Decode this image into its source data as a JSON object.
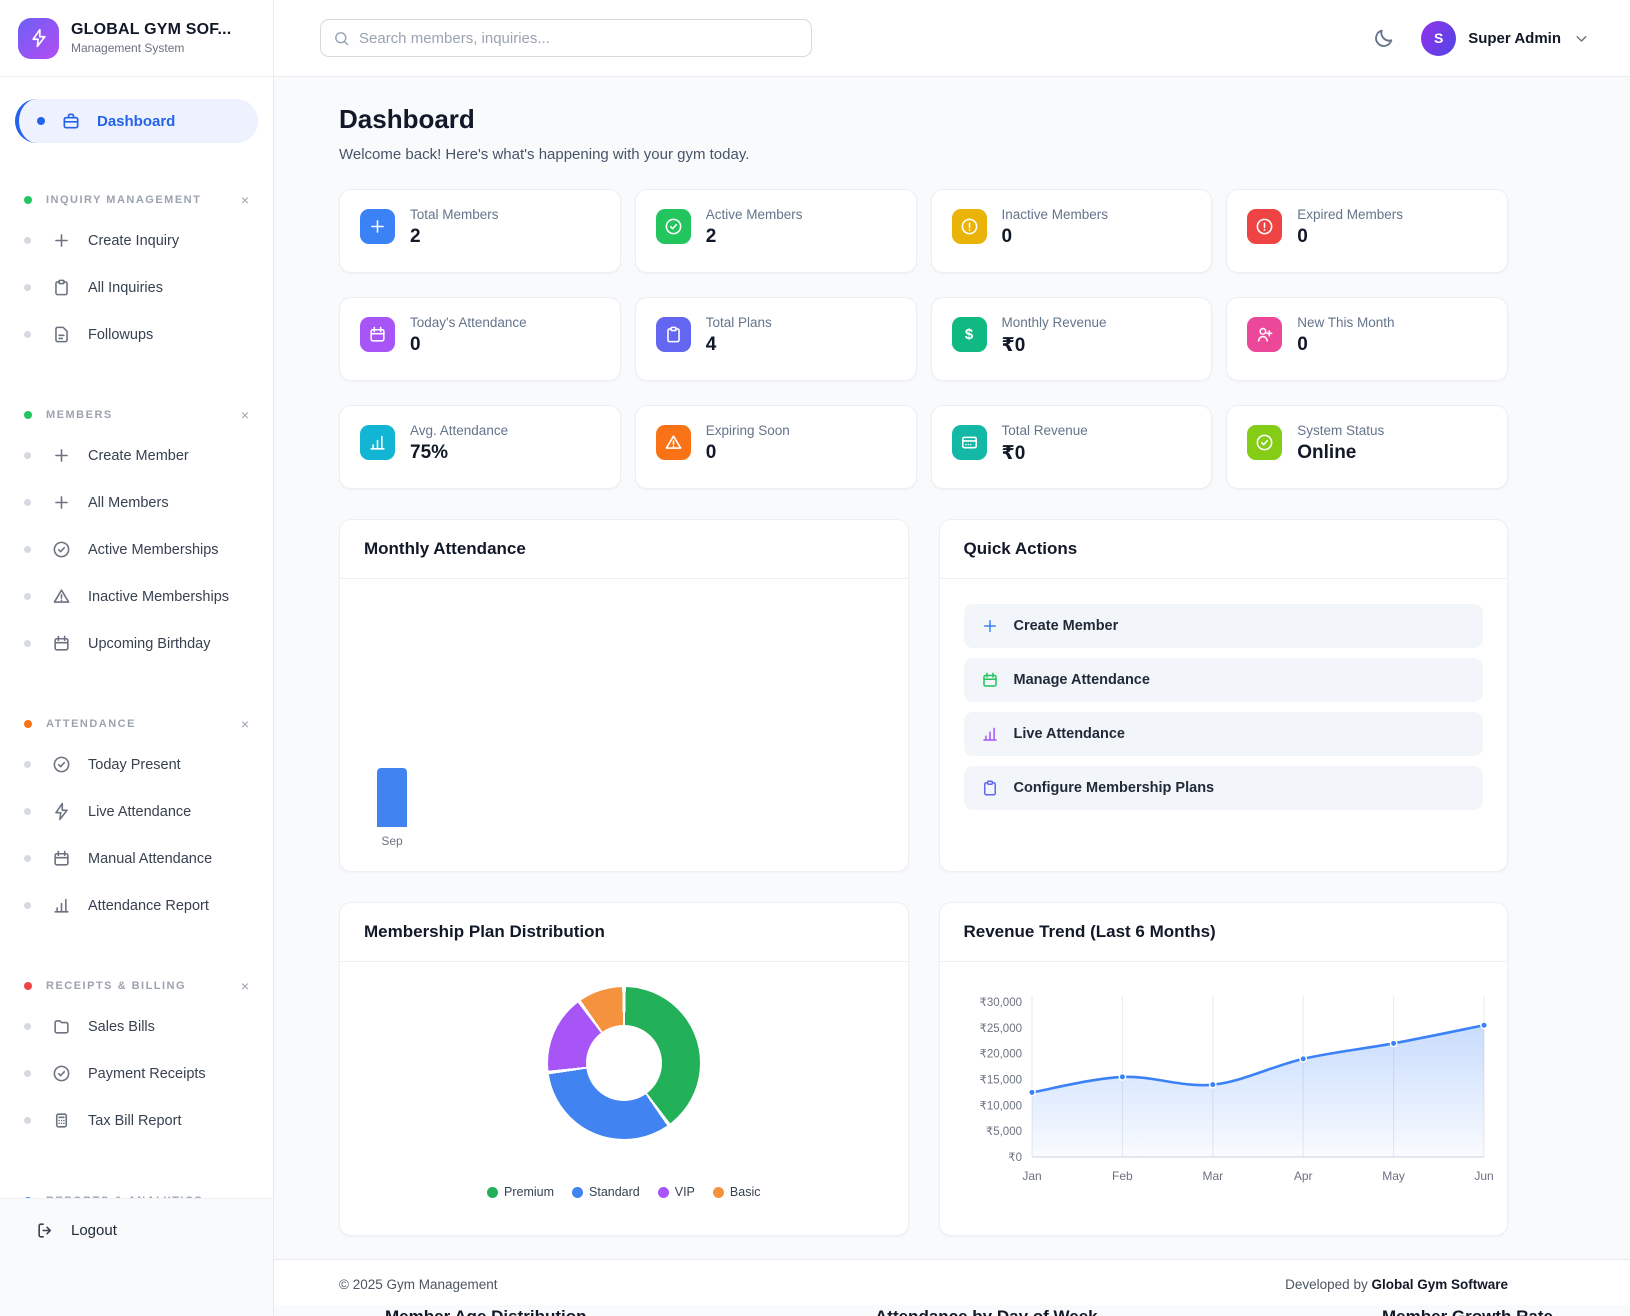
{
  "brand": {
    "title": "GLOBAL GYM SOF...",
    "subtitle": "Management System",
    "logo_icon": "lightning-icon",
    "accent_colors": [
      "#6d5ff6",
      "#b34df2"
    ]
  },
  "search": {
    "placeholder": "Search members, inquiries...",
    "icon": "search-icon"
  },
  "user": {
    "initial": "S",
    "name": "Super Admin"
  },
  "sidebar": {
    "dashboard": {
      "label": "Dashboard",
      "icon": "briefcase-icon",
      "active": true,
      "active_color": "#2563eb"
    },
    "sections": [
      {
        "label": "INQUIRY MANAGEMENT",
        "dot_color": "#22c55e",
        "close_icon": "close-icon",
        "items": [
          {
            "label": "Create Inquiry",
            "icon": "plus-icon"
          },
          {
            "label": "All Inquiries",
            "icon": "clipboard-icon"
          },
          {
            "label": "Followups",
            "icon": "file-icon"
          }
        ]
      },
      {
        "label": "MEMBERS",
        "dot_color": "#22c55e",
        "close_icon": "close-icon",
        "items": [
          {
            "label": "Create Member",
            "icon": "plus-icon"
          },
          {
            "label": "All Members",
            "icon": "plus-icon"
          },
          {
            "label": "Active Memberships",
            "icon": "check-circle-icon"
          },
          {
            "label": "Inactive Memberships",
            "icon": "alert-triangle-icon"
          },
          {
            "label": "Upcoming Birthday",
            "icon": "calendar-icon"
          }
        ]
      },
      {
        "label": "ATTENDANCE",
        "dot_color": "#f97316",
        "close_icon": "close-icon",
        "items": [
          {
            "label": "Today Present",
            "icon": "check-circle-icon"
          },
          {
            "label": "Live Attendance",
            "icon": "lightning-icon"
          },
          {
            "label": "Manual Attendance",
            "icon": "calendar-icon"
          },
          {
            "label": "Attendance Report",
            "icon": "bar-chart-icon"
          }
        ]
      },
      {
        "label": "RECEIPTS & BILLING",
        "dot_color": "#ef4444",
        "close_icon": "close-icon",
        "items": [
          {
            "label": "Sales Bills",
            "icon": "folder-icon"
          },
          {
            "label": "Payment Receipts",
            "icon": "check-circle-icon"
          },
          {
            "label": "Tax Bill Report",
            "icon": "calculator-icon"
          }
        ]
      },
      {
        "label": "REPORTS & ANALYTICS",
        "dot_color": "#3b82f6",
        "close_icon": "close-icon",
        "items": []
      }
    ],
    "logout_label": "Logout"
  },
  "page": {
    "title": "Dashboard",
    "subtitle": "Welcome back! Here's what's happening with your gym today."
  },
  "stats": [
    {
      "label": "Total Members",
      "value": "2",
      "color": "#3b82f6",
      "icon": "plus-icon"
    },
    {
      "label": "Active Members",
      "value": "2",
      "color": "#22c55e",
      "icon": "check-circle-icon"
    },
    {
      "label": "Inactive Members",
      "value": "0",
      "color": "#eab308",
      "icon": "alert-circle-icon"
    },
    {
      "label": "Expired Members",
      "value": "0",
      "color": "#ef4444",
      "icon": "alert-circle-icon"
    },
    {
      "label": "Today's Attendance",
      "value": "0",
      "color": "#a855f7",
      "icon": "calendar-icon"
    },
    {
      "label": "Total Plans",
      "value": "4",
      "color": "#6366f1",
      "icon": "clipboard-icon"
    },
    {
      "label": "Monthly Revenue",
      "value": "₹0",
      "color": "#10b981",
      "icon": "dollar-icon"
    },
    {
      "label": "New This Month",
      "value": "0",
      "color": "#ec4899",
      "icon": "user-plus-icon"
    },
    {
      "label": "Avg. Attendance",
      "value": "75%",
      "color": "#12b5d4",
      "icon": "bar-chart-icon"
    },
    {
      "label": "Expiring Soon",
      "value": "0",
      "color": "#f97316",
      "icon": "alert-triangle-icon"
    },
    {
      "label": "Total Revenue",
      "value": "₹0",
      "color": "#14b8a6",
      "icon": "credit-card-icon"
    },
    {
      "label": "System Status",
      "value": "Online",
      "color": "#84cc16",
      "icon": "check-circle-icon"
    }
  ],
  "panels": {
    "monthly_attendance": {
      "title": "Monthly Attendance"
    },
    "quick_actions": {
      "title": "Quick Actions",
      "actions": [
        {
          "label": "Create Member",
          "icon": "plus-icon",
          "color": "#3b82f6"
        },
        {
          "label": "Manage Attendance",
          "icon": "calendar-icon",
          "color": "#22c55e"
        },
        {
          "label": "Live Attendance",
          "icon": "bar-chart-icon",
          "color": "#a855f7"
        },
        {
          "label": "Configure Membership Plans",
          "icon": "clipboard-icon",
          "color": "#6366f1"
        }
      ]
    },
    "plan_distribution": {
      "title": "Membership Plan Distribution"
    },
    "revenue_trend": {
      "title": "Revenue Trend (Last 6 Months)"
    }
  },
  "chart_data": [
    {
      "id": "monthly_attendance",
      "type": "bar",
      "title": "Monthly Attendance",
      "categories": [
        "Sep"
      ],
      "values": [
        1
      ],
      "bar_color": "#4083f1",
      "grid": false
    },
    {
      "id": "plan_distribution",
      "type": "pie",
      "title": "Membership Plan Distribution",
      "labels": [
        "Premium",
        "Standard",
        "VIP",
        "Basic"
      ],
      "values": [
        40,
        33,
        17,
        10
      ],
      "colors": [
        "#22b158",
        "#4083f1",
        "#a855f7",
        "#f5923e"
      ],
      "legend_position": "bottom"
    },
    {
      "id": "revenue_trend",
      "type": "line",
      "title": "Revenue Trend (Last 6 Months)",
      "x": [
        "Jan",
        "Feb",
        "Mar",
        "Apr",
        "May",
        "Jun"
      ],
      "values": [
        12500,
        15500,
        14000,
        19000,
        22000,
        25500
      ],
      "ylim": [
        0,
        30000
      ],
      "yticks": [
        "₹0",
        "₹5,000",
        "₹10,000",
        "₹15,000",
        "₹20,000",
        "₹25,000",
        "₹30,000"
      ],
      "line_color": "#3b82f6",
      "fill_color": "#dbeafe",
      "grid": true,
      "legend_position": "none"
    }
  ],
  "footer": {
    "copyright": "© 2025 Gym Management",
    "developed_by": "Developed by",
    "developer": "Global Gym Software"
  },
  "cutoff_titles": [
    "Member Age Distribution",
    "Attendance by Day of Week",
    "Member Growth Rate"
  ]
}
